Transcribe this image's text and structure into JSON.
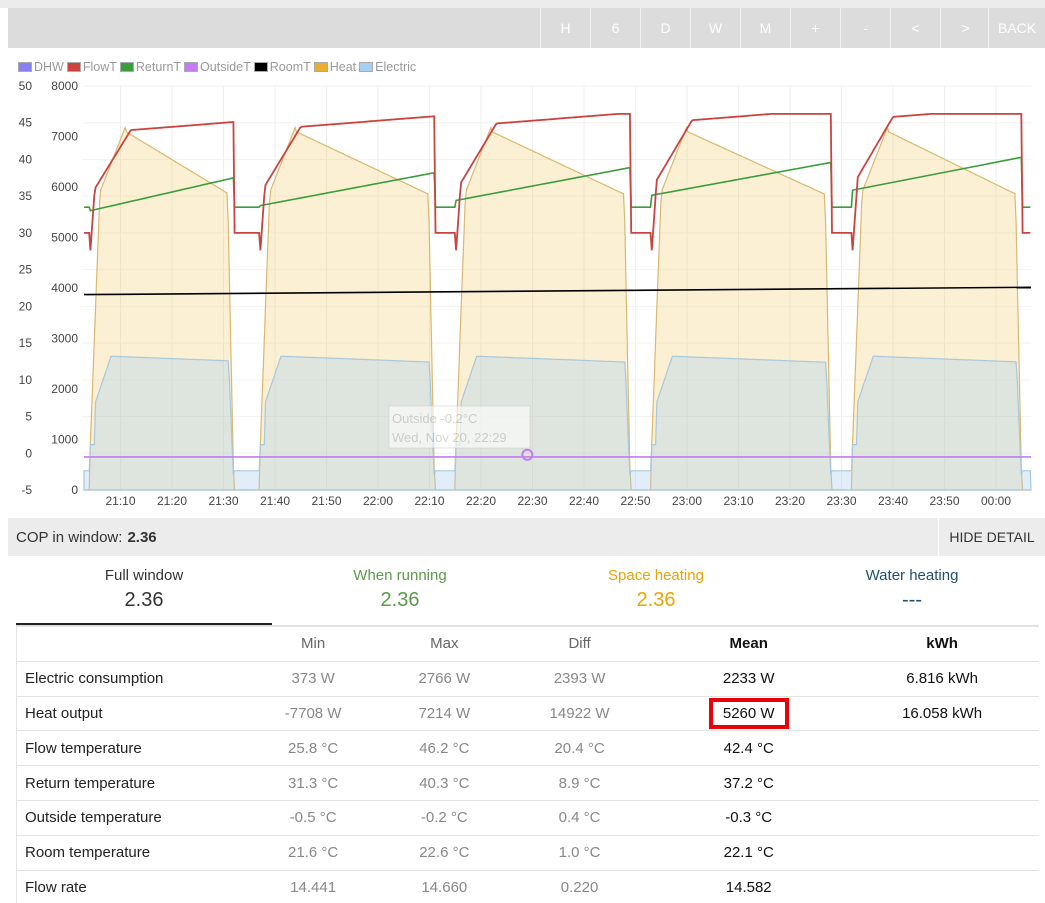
{
  "toolbar": {
    "buttons": [
      "H",
      "6",
      "D",
      "W",
      "M",
      "+",
      "-",
      "<",
      ">",
      "BACK"
    ]
  },
  "legend": [
    {
      "label": "DHW",
      "color": "#8a7ff0"
    },
    {
      "label": "FlowT",
      "color": "#c9443f"
    },
    {
      "label": "ReturnT",
      "color": "#3a9c3a"
    },
    {
      "label": "OutsideT",
      "color": "#c17ef0"
    },
    {
      "label": "RoomT",
      "color": "#000000"
    },
    {
      "label": "Heat",
      "color": "#e8b030"
    },
    {
      "label": "Electric",
      "color": "#a8cff0"
    }
  ],
  "chart_data": {
    "type": "line",
    "left_axis_ticks": [
      "50",
      "45",
      "40",
      "35",
      "30",
      "25",
      "20",
      "15",
      "10",
      "5",
      "0",
      "-5"
    ],
    "right_axis_ticks": [
      "8000",
      "7000",
      "6000",
      "5000",
      "4000",
      "3000",
      "2000",
      "1000",
      "0"
    ],
    "x_ticks": [
      "21:10",
      "21:20",
      "21:30",
      "21:40",
      "21:50",
      "22:00",
      "22:10",
      "22:20",
      "22:30",
      "22:40",
      "22:50",
      "23:00",
      "23:10",
      "23:20",
      "23:30",
      "23:40",
      "23:50",
      "00:00"
    ],
    "ylim_temp": [
      -5,
      50
    ],
    "ylim_power": [
      0,
      8000
    ],
    "tooltip": {
      "line1": "Outside -0.2°C",
      "line2": "Wed, Nov 20, 22:29"
    },
    "cycles": [
      {
        "start": "21:04",
        "end": "21:32"
      },
      {
        "start": "21:37",
        "end": "22:11"
      },
      {
        "start": "22:15",
        "end": "22:49"
      },
      {
        "start": "22:53",
        "end": "23:28"
      },
      {
        "start": "23:32",
        "end": "00:05"
      }
    ],
    "series": [
      {
        "name": "FlowT",
        "unit": "°C",
        "start_value": 25.8,
        "peak_value": 46.2
      },
      {
        "name": "ReturnT",
        "unit": "°C",
        "start_value": 31.3,
        "peak_value": 40.3
      },
      {
        "name": "RoomT",
        "unit": "°C",
        "start_value": 21.6,
        "end_value": 22.6
      },
      {
        "name": "OutsideT",
        "unit": "°C",
        "values": [
          -0.5,
          -0.2
        ]
      },
      {
        "name": "Heat",
        "unit": "W",
        "peak_value": 7214,
        "plateau_value": 6200
      },
      {
        "name": "Electric",
        "unit": "W",
        "plateau_value": 2600
      }
    ]
  },
  "cop_bar": {
    "label": "COP in window:",
    "value": "2.36",
    "hide_detail": "HIDE DETAIL"
  },
  "summary": [
    {
      "title": "Full window",
      "value": "2.36",
      "color": "#333333"
    },
    {
      "title": "When running",
      "value": "2.36",
      "color": "#5a9a4a"
    },
    {
      "title": "Space heating",
      "value": "2.36",
      "color": "#e8a400"
    },
    {
      "title": "Water heating",
      "value": "---",
      "color": "#1f4e6e"
    }
  ],
  "table": {
    "headers": [
      "",
      "Min",
      "Max",
      "Diff",
      "Mean",
      "kWh"
    ],
    "rows": [
      {
        "label": "Electric consumption",
        "min": "373 W",
        "max": "2766 W",
        "diff": "2393 W",
        "mean": "2233 W",
        "kwh": "6.816 kWh"
      },
      {
        "label": "Heat output",
        "min": "-7708 W",
        "max": "7214 W",
        "diff": "14922 W",
        "mean": "5260 W",
        "kwh": "16.058 kWh"
      },
      {
        "label": "Flow temperature",
        "min": "25.8 °C",
        "max": "46.2 °C",
        "diff": "20.4 °C",
        "mean": "42.4 °C",
        "kwh": ""
      },
      {
        "label": "Return temperature",
        "min": "31.3 °C",
        "max": "40.3 °C",
        "diff": "8.9 °C",
        "mean": "37.2 °C",
        "kwh": ""
      },
      {
        "label": "Outside temperature",
        "min": "-0.5 °C",
        "max": "-0.2 °C",
        "diff": "0.4 °C",
        "mean": "-0.3 °C",
        "kwh": ""
      },
      {
        "label": "Room temperature",
        "min": "21.6 °C",
        "max": "22.6 °C",
        "diff": "1.0 °C",
        "mean": "22.1 °C",
        "kwh": ""
      },
      {
        "label": "Flow rate",
        "min": "14.441",
        "max": "14.660",
        "diff": "0.220",
        "mean": "14.582",
        "kwh": ""
      }
    ]
  }
}
